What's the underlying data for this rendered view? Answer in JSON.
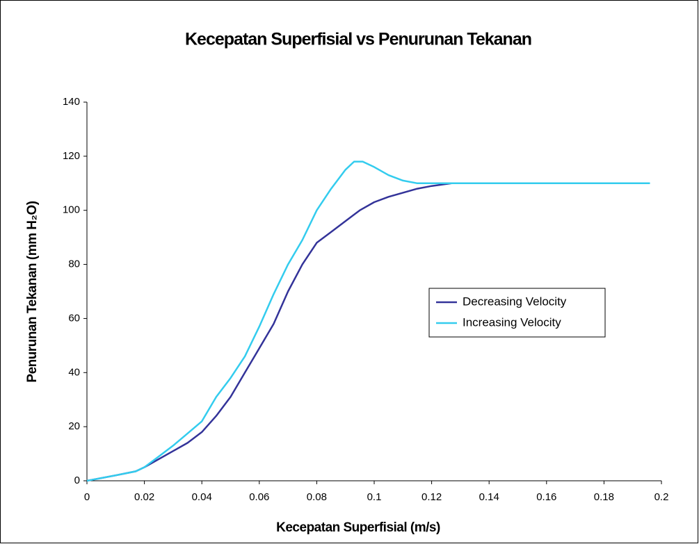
{
  "chart_data": {
    "type": "line",
    "title": "Kecepatan Superfisial vs Penurunan Tekanan",
    "x_label": "Kecepatan Superfisial (m/s)",
    "y_label": "Penurunan Tekanan (mm H₂O)",
    "xlim": [
      0,
      0.2
    ],
    "xticks": [
      0,
      0.02,
      0.04,
      0.06,
      0.08,
      0.1,
      0.12,
      0.14,
      0.16,
      0.18,
      0.2
    ],
    "ylim": [
      0,
      140
    ],
    "yticks": [
      0,
      20,
      40,
      60,
      80,
      100,
      120,
      140
    ],
    "grid": false,
    "legend": "right",
    "series": [
      {
        "name": "Decreasing Velocity",
        "color": "#333399",
        "x": [
          0,
          0.01,
          0.017,
          0.02,
          0.03,
          0.035,
          0.04,
          0.045,
          0.05,
          0.055,
          0.06,
          0.065,
          0.07,
          0.075,
          0.08,
          0.085,
          0.09,
          0.095,
          0.1,
          0.105,
          0.11,
          0.115,
          0.12,
          0.127,
          0.196
        ],
        "values": [
          0,
          2,
          3.5,
          5,
          11,
          14,
          18,
          24,
          31,
          40,
          49,
          58,
          70,
          80,
          88,
          92,
          96,
          100,
          103,
          105,
          106.5,
          108,
          109,
          110,
          110
        ]
      },
      {
        "name": "Increasing Velocity",
        "color": "#33ccee",
        "x": [
          0,
          0.01,
          0.017,
          0.02,
          0.025,
          0.03,
          0.035,
          0.04,
          0.045,
          0.05,
          0.055,
          0.06,
          0.065,
          0.07,
          0.075,
          0.08,
          0.085,
          0.09,
          0.093,
          0.096,
          0.1,
          0.105,
          0.11,
          0.115,
          0.196
        ],
        "values": [
          0,
          2,
          3.5,
          5,
          9,
          13,
          17.5,
          22,
          31,
          38,
          46,
          57,
          69,
          80,
          89,
          100,
          108,
          115,
          118,
          118,
          116,
          113,
          111,
          110,
          110
        ]
      }
    ]
  }
}
